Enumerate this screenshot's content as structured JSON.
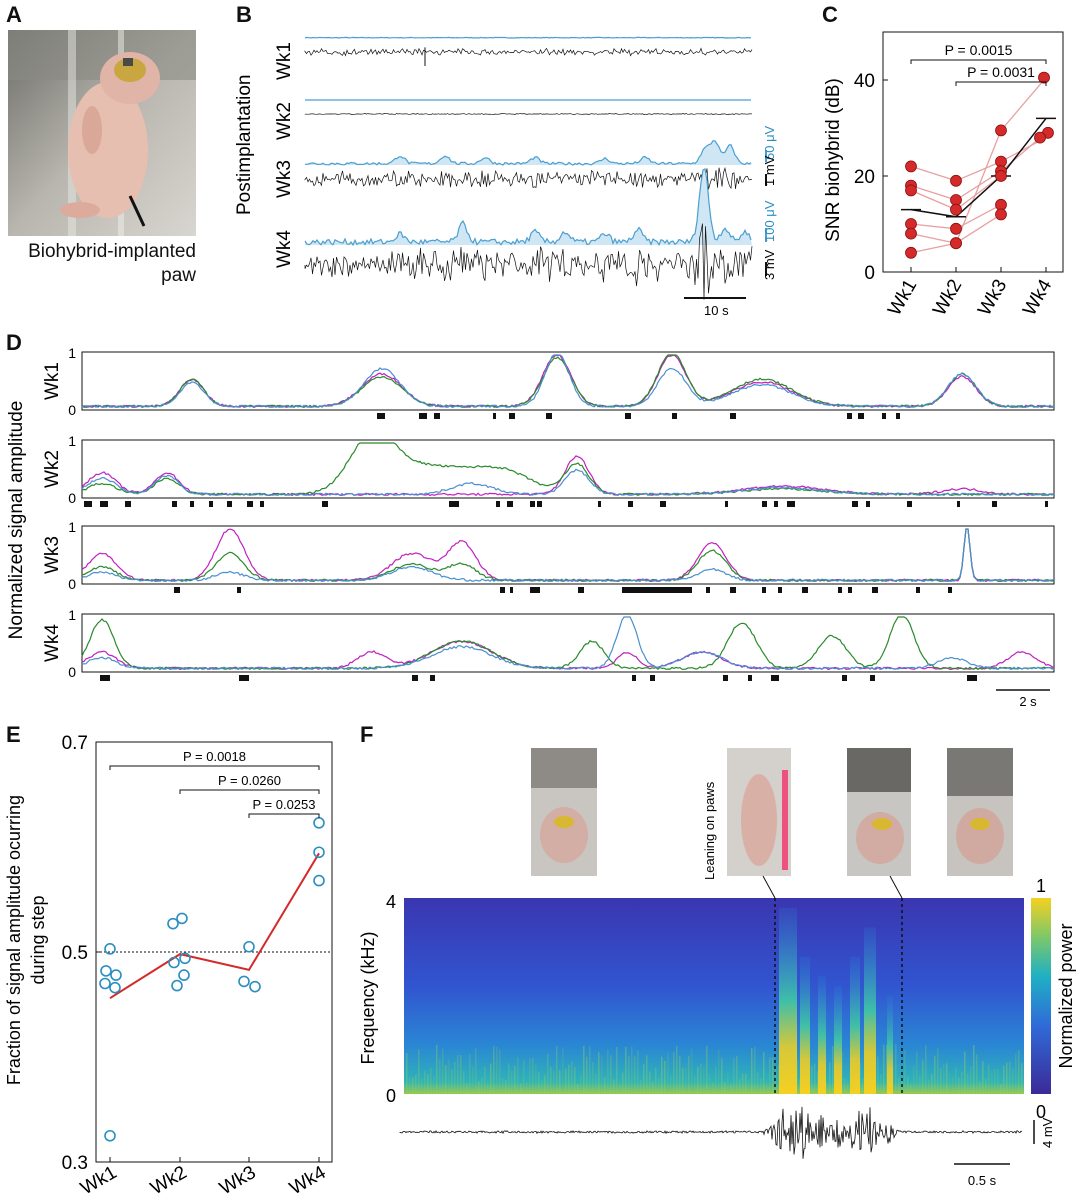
{
  "panels": {
    "A": "A",
    "B": "B",
    "C": "C",
    "D": "D",
    "E": "E",
    "F": "F"
  },
  "photo_a_caption_line1": "Biohybrid-implanted",
  "photo_a_caption_line2": "paw",
  "panel_b": {
    "side_label": "Postimplantation",
    "weeks": [
      "Wk1",
      "Wk2",
      "Wk3",
      "Wk4"
    ],
    "scale_env_wk3": "50 μV",
    "scale_raw_wk3": "1 mV",
    "scale_env_wk4": "100 μV",
    "scale_raw_wk4": "3 mV",
    "time_scale": "10 s"
  },
  "colors": {
    "env_line": "#4a9fd0",
    "env_fill": "#cfe6f5",
    "red": "#d42a2a",
    "redline": "#e8a0a0",
    "magenta": "#c020c0",
    "green": "#2a8a2a",
    "blue": "#4a8fcf",
    "circle": "#2a8fc0"
  },
  "chart_data": [
    {
      "panel": "C",
      "type": "scatter",
      "categories": [
        "Wk1",
        "Wk2",
        "Wk3",
        "Wk4"
      ],
      "ylabel": "SNR biohybrid (dB)",
      "ylim": [
        0,
        50
      ],
      "yticks": [
        "0",
        "20",
        "40"
      ],
      "points": [
        {
          "x": "Wk1",
          "y": 22
        },
        {
          "x": "Wk1",
          "y": 18
        },
        {
          "x": "Wk1",
          "y": 17
        },
        {
          "x": "Wk1",
          "y": 10
        },
        {
          "x": "Wk1",
          "y": 8
        },
        {
          "x": "Wk1",
          "y": 4
        },
        {
          "x": "Wk2",
          "y": 19
        },
        {
          "x": "Wk2",
          "y": 15
        },
        {
          "x": "Wk2",
          "y": 13
        },
        {
          "x": "Wk2",
          "y": 9
        },
        {
          "x": "Wk2",
          "y": 6
        },
        {
          "x": "Wk2",
          "y": 6
        },
        {
          "x": "Wk3",
          "y": 29.5
        },
        {
          "x": "Wk3",
          "y": 23
        },
        {
          "x": "Wk3",
          "y": 21
        },
        {
          "x": "Wk3",
          "y": 20
        },
        {
          "x": "Wk3",
          "y": 14
        },
        {
          "x": "Wk3",
          "y": 12
        },
        {
          "x": "Wk4",
          "y": 40.5
        },
        {
          "x": "Wk4",
          "y": 29
        },
        {
          "x": "Wk4",
          "y": 28
        }
      ],
      "mean_line": [
        13,
        11.5,
        20,
        32
      ],
      "pvalues": [
        {
          "label": "P = 0.0015",
          "from": "Wk1",
          "to": "Wk4"
        },
        {
          "label": "P = 0.0031",
          "from": "Wk2",
          "to": "Wk4"
        }
      ]
    },
    {
      "panel": "D",
      "type": "line",
      "ylabel": "Normalized signal amplitude",
      "rows": [
        "Wk1",
        "Wk2",
        "Wk3",
        "Wk4"
      ],
      "yticks": [
        "0",
        "1"
      ],
      "series": [
        {
          "name": "",
          "color": "magenta"
        },
        {
          "name": "",
          "color": "green"
        },
        {
          "name": "",
          "color": "blue"
        }
      ],
      "time_scale": "2 s"
    },
    {
      "panel": "E",
      "type": "scatter",
      "categories": [
        "Wk1",
        "Wk2",
        "Wk3",
        "Wk4"
      ],
      "ylabel_line1": "Fraction of signal amplitude ocurring",
      "ylabel_line2": "during step",
      "ylim": [
        0.3,
        0.7
      ],
      "yticks": [
        "0.3",
        "0.5",
        "0.7"
      ],
      "reference": 0.5,
      "points": [
        {
          "x": "Wk1",
          "y": 0.503,
          "dx": 0
        },
        {
          "x": "Wk1",
          "y": 0.482,
          "dx": -4
        },
        {
          "x": "Wk1",
          "y": 0.478,
          "dx": 6
        },
        {
          "x": "Wk1",
          "y": 0.47,
          "dx": -5
        },
        {
          "x": "Wk1",
          "y": 0.466,
          "dx": 5
        },
        {
          "x": "Wk1",
          "y": 0.325,
          "dx": 0
        },
        {
          "x": "Wk2",
          "y": 0.527,
          "dx": -7
        },
        {
          "x": "Wk2",
          "y": 0.532,
          "dx": 2
        },
        {
          "x": "Wk2",
          "y": 0.49,
          "dx": -6
        },
        {
          "x": "Wk2",
          "y": 0.494,
          "dx": 5
        },
        {
          "x": "Wk2",
          "y": 0.478,
          "dx": 4
        },
        {
          "x": "Wk2",
          "y": 0.468,
          "dx": -3
        },
        {
          "x": "Wk3",
          "y": 0.505,
          "dx": 0
        },
        {
          "x": "Wk3",
          "y": 0.472,
          "dx": -5
        },
        {
          "x": "Wk3",
          "y": 0.467,
          "dx": 6
        },
        {
          "x": "Wk4",
          "y": 0.623,
          "dx": 0
        },
        {
          "x": "Wk4",
          "y": 0.595,
          "dx": 0
        },
        {
          "x": "Wk4",
          "y": 0.568,
          "dx": 0
        }
      ],
      "mean_line": [
        0.456,
        0.498,
        0.483,
        0.594
      ],
      "pvalues": [
        {
          "label": "P = 0.0018",
          "from": "Wk1",
          "to": "Wk4"
        },
        {
          "label": "P = 0.0260",
          "from": "Wk2",
          "to": "Wk4"
        },
        {
          "label": "P = 0.0253",
          "from": "Wk3",
          "to": "Wk4"
        }
      ]
    },
    {
      "panel": "F",
      "type": "heatmap",
      "ylabel": "Frequency (kHz)",
      "yticks": [
        "0",
        "4"
      ],
      "colorbar_label": "Normalized power",
      "colorbar_ticks": [
        "0",
        "1"
      ],
      "annotation": "Leaning on paws",
      "scale_raw": "4 mV",
      "time_scale": "0.5 s"
    }
  ]
}
